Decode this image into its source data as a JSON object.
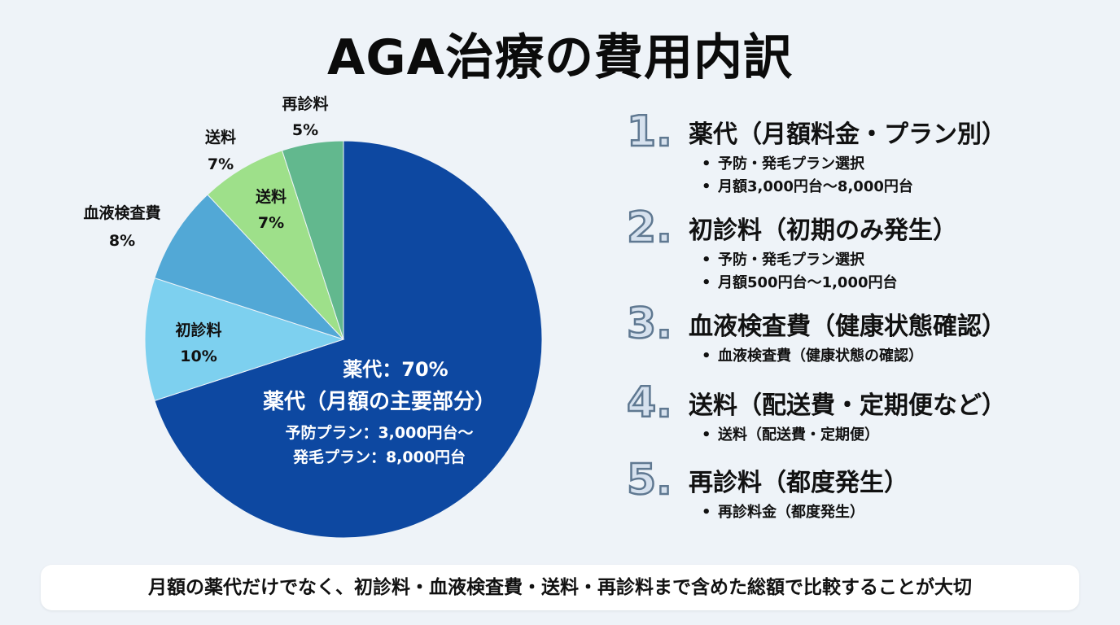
{
  "title": "AGA治療の費用内訳",
  "chart_data": {
    "type": "pie",
    "slices": [
      {
        "label": "薬代",
        "value": 70,
        "display": "薬代：70%",
        "color": "#0d48a1"
      },
      {
        "label": "初診料",
        "value": 10,
        "display": "10%",
        "color": "#7dd0ef"
      },
      {
        "label": "血液検査費",
        "value": 8,
        "display": "8%",
        "color": "#52a8d6"
      },
      {
        "label": "送料",
        "value": 7,
        "display": "7%",
        "color": "#9ee08a"
      },
      {
        "label": "再診料",
        "value": 5,
        "display": "5%",
        "color": "#62b88e"
      }
    ],
    "outside_labels": [
      {
        "label": "再診料",
        "pct": "5%"
      },
      {
        "label": "送料",
        "pct": "7%"
      },
      {
        "label": "血液検査費",
        "pct": "8%"
      }
    ],
    "main_annotation": {
      "line1": "薬代：70%",
      "line2": "薬代（月額の主要部分）",
      "line3": "予防プラン：3,000円台～",
      "line4": "発毛プラン：8,000円台"
    }
  },
  "legend": [
    {
      "num": "1.",
      "heading": "薬代（月額料金・プラン別）",
      "bullets": [
        "予防・発毛プラン選択",
        "月額3,000円台～8,000円台"
      ]
    },
    {
      "num": "2.",
      "heading": "初診料（初期のみ発生）",
      "bullets": [
        "予防・発毛プラン選択",
        "月額500円台～1,000円台"
      ]
    },
    {
      "num": "3.",
      "heading": "血液検査費（健康状態確認）",
      "bullets": [
        "血液検査費（健康状態の確認）"
      ]
    },
    {
      "num": "4.",
      "heading": "送料（配送費・定期便など）",
      "bullets": [
        "送料（配送費・定期便）"
      ]
    },
    {
      "num": "5.",
      "heading": "再診料（都度発生）",
      "bullets": [
        "再診料金（都度発生）"
      ]
    }
  ],
  "footer": "月額の薬代だけでなく、初診料・血液検査費・送料・再診料まで含めた総額で比較することが大切"
}
